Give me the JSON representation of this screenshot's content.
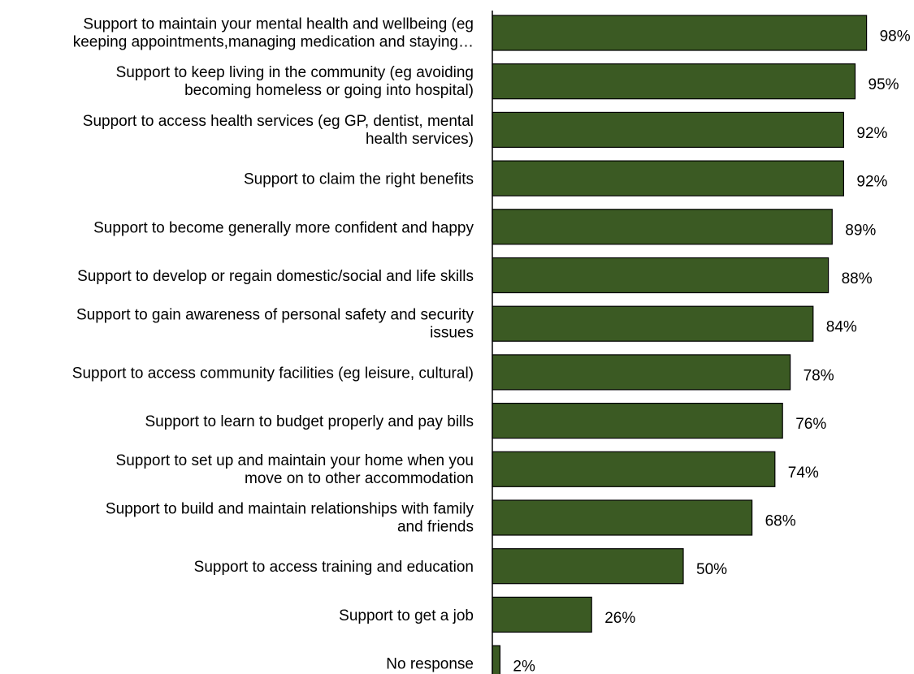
{
  "chart_data": {
    "type": "bar",
    "orientation": "horizontal",
    "title": "",
    "xlabel": "",
    "ylabel": "",
    "xlim": [
      0,
      100
    ],
    "grid": false,
    "legend": "none",
    "value_suffix": "%",
    "bar_color": "#3b5a23",
    "bar_outline": "#000000",
    "categories": [
      [
        "Support to maintain your mental health and wellbeing (eg",
        "keeping appointments,managing medication and staying…"
      ],
      [
        "Support to keep living in the community (eg avoiding",
        "becoming homeless or going into hospital)"
      ],
      [
        "Support to access health services (eg GP, dentist, mental",
        "health services)"
      ],
      [
        "Support to claim the right benefits"
      ],
      [
        "Support to become generally more confident and happy"
      ],
      [
        "Support to develop or regain domestic/social and life skills"
      ],
      [
        "Support to gain awareness of personal safety and security",
        "issues"
      ],
      [
        "Support to access community facilities (eg leisure, cultural)"
      ],
      [
        "Support to learn to budget properly and pay bills"
      ],
      [
        "Support to set up and maintain your home when you",
        "move on to other accommodation"
      ],
      [
        "Support to build and maintain relationships with family",
        "and friends"
      ],
      [
        "Support to access training and education"
      ],
      [
        "Support to get a job"
      ],
      [
        "No response"
      ]
    ],
    "values": [
      98,
      95,
      92,
      92,
      89,
      88,
      84,
      78,
      76,
      74,
      68,
      50,
      26,
      2
    ],
    "value_labels": [
      "98%",
      "95%",
      "92%",
      "92%",
      "89%",
      "88%",
      "84%",
      "78%",
      "76%",
      "74%",
      "68%",
      "50%",
      "26%",
      "2%"
    ]
  }
}
